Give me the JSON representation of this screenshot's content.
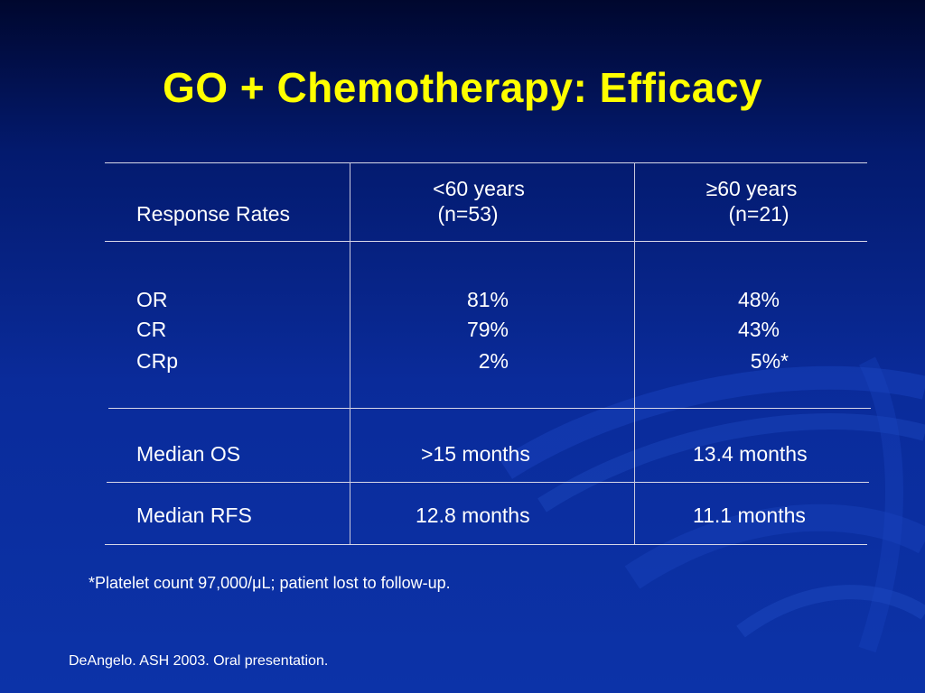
{
  "slide": {
    "title": "GO + Chemotherapy: Efficacy",
    "footnote": "*Platelet count 97,000/μL; patient lost to follow-up.",
    "source": "DeAngelo. ASH 2003. Oral presentation.",
    "colors": {
      "title": "#ffff00",
      "text": "#ffffff",
      "background": "#0a2b9a"
    }
  },
  "table": {
    "header": {
      "row_label": "Response Rates",
      "col1_line1": "<60 years",
      "col1_line2": "(n=53)",
      "col2_line1": "≥60 years",
      "col2_line2": "(n=21)"
    },
    "response_rows": [
      {
        "label": "OR",
        "col1": "81%",
        "col2": "48%"
      },
      {
        "label": "CR",
        "col1": "79%",
        "col2": "43%"
      },
      {
        "label": "CRp",
        "col1": "2%",
        "col2": "5%*"
      }
    ],
    "median_os": {
      "label": "Median OS",
      "col1": ">15 months",
      "col2": "13.4 months"
    },
    "median_rfs": {
      "label": "Median RFS",
      "col1": "12.8 months",
      "col2": "11.1 months"
    }
  }
}
